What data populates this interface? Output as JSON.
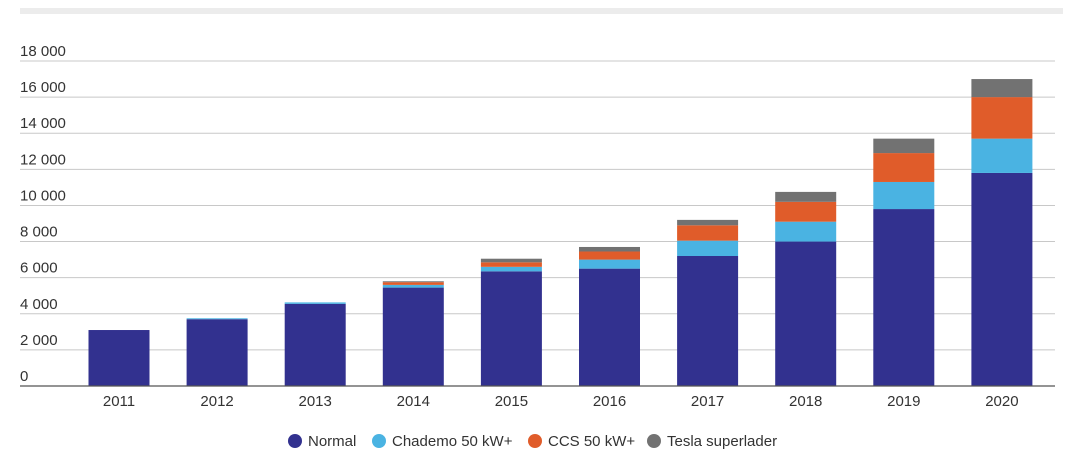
{
  "chart_data": {
    "type": "bar",
    "stacked": true,
    "categories": [
      "2011",
      "2012",
      "2013",
      "2014",
      "2015",
      "2016",
      "2017",
      "2018",
      "2019",
      "2020"
    ],
    "series": [
      {
        "name": "Normal",
        "color": "#32318f",
        "values": [
          3100,
          3700,
          4550,
          5450,
          6350,
          6500,
          7200,
          8000,
          9800,
          11800
        ]
      },
      {
        "name": "Chademo 50 kW+",
        "color": "#4ab3e2",
        "values": [
          0,
          50,
          80,
          150,
          250,
          500,
          850,
          1100,
          1500,
          1900
        ]
      },
      {
        "name": "CCS 50 kW+",
        "color": "#e05c2a",
        "values": [
          0,
          0,
          0,
          150,
          250,
          450,
          850,
          1100,
          1600,
          2300
        ]
      },
      {
        "name": "Tesla superlader",
        "color": "#727272",
        "values": [
          0,
          0,
          0,
          50,
          200,
          250,
          300,
          550,
          800,
          1000
        ]
      }
    ],
    "y_ticks": [
      "0",
      "2 000",
      "4 000",
      "6 000",
      "8 000",
      "10 000",
      "12 000",
      "14 000",
      "16 000",
      "18 000"
    ],
    "ylim": [
      0,
      18000
    ],
    "grid": true,
    "legend_position": "bottom-center"
  }
}
